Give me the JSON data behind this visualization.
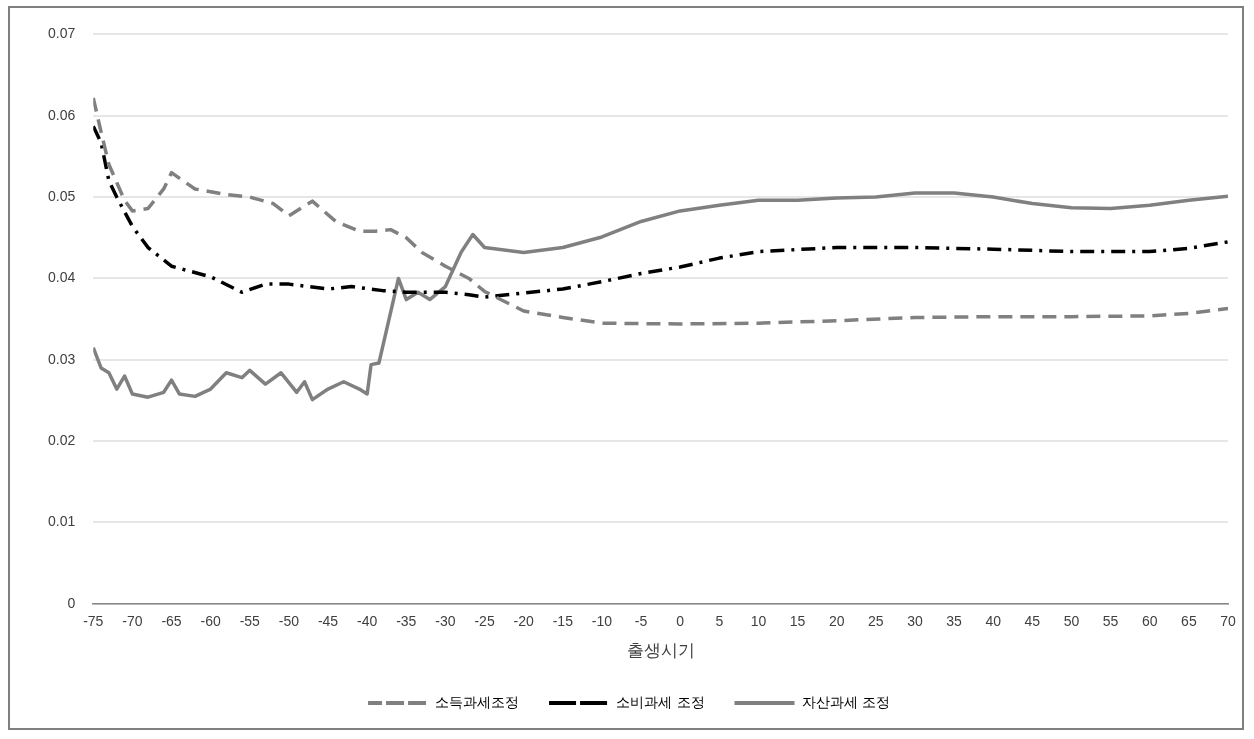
{
  "chart_data": {
    "type": "line",
    "xlabel": "출생시기",
    "xlim": [
      -75,
      70
    ],
    "xticks": [
      -75,
      -70,
      -65,
      -60,
      -55,
      -50,
      -45,
      -40,
      -35,
      -30,
      -25,
      -20,
      -15,
      -10,
      -5,
      0,
      5,
      10,
      15,
      20,
      25,
      30,
      35,
      40,
      45,
      50,
      55,
      60,
      65,
      70
    ],
    "ylim": [
      0,
      0.07
    ],
    "yticks": [
      0,
      0.01,
      0.02,
      0.03,
      0.04,
      0.05,
      0.06,
      0.07
    ],
    "grid": "y",
    "legend": "bottom",
    "marker": "none",
    "series": [
      {
        "name": "소득과세조정",
        "color": "#808080",
        "line_style": "dashed",
        "x": [
          -75,
          -74,
          -73,
          -71,
          -70,
          -68,
          -66,
          -65,
          -62,
          -58,
          -55,
          -52,
          -50,
          -47,
          -44,
          -41,
          -39,
          -37,
          -35,
          -33,
          -30,
          -27,
          -25,
          -20,
          -15,
          -10,
          0,
          10,
          20,
          30,
          40,
          50,
          60,
          65,
          70
        ],
        "values": [
          0.0622,
          0.058,
          0.054,
          0.0496,
          0.0483,
          0.0486,
          0.051,
          0.053,
          0.051,
          0.0503,
          0.05,
          0.0492,
          0.0477,
          0.0495,
          0.047,
          0.0458,
          0.0458,
          0.046,
          0.045,
          0.0432,
          0.0415,
          0.04,
          0.0384,
          0.036,
          0.0352,
          0.0345,
          0.0344,
          0.0345,
          0.0348,
          0.0352,
          0.0353,
          0.0353,
          0.0354,
          0.0357,
          0.0363
        ]
      },
      {
        "name": "소비과세 조정",
        "color": "#000000",
        "line_style": "dashdot",
        "x": [
          -75,
          -74,
          -73,
          -72,
          -70,
          -68,
          -65,
          -60,
          -56,
          -53,
          -50,
          -45,
          -42,
          -38,
          -35,
          -30,
          -27,
          -25,
          -20,
          -15,
          -10,
          -5,
          0,
          5,
          10,
          20,
          30,
          40,
          50,
          60,
          65,
          70
        ],
        "values": [
          0.0587,
          0.0567,
          0.052,
          0.05,
          0.0464,
          0.0438,
          0.0415,
          0.0402,
          0.0383,
          0.0393,
          0.0393,
          0.0387,
          0.039,
          0.0385,
          0.0383,
          0.0383,
          0.038,
          0.0377,
          0.0382,
          0.0387,
          0.0396,
          0.0406,
          0.0414,
          0.0425,
          0.0433,
          0.0438,
          0.0438,
          0.0436,
          0.0433,
          0.0433,
          0.0437,
          0.0445
        ]
      },
      {
        "name": "자산과세 조정",
        "color": "#808080",
        "line_style": "solid",
        "x": [
          -75,
          -74,
          -73,
          -72,
          -71,
          -70,
          -68,
          -66,
          -65,
          -64,
          -62,
          -60,
          -58,
          -56,
          -55,
          -53,
          -51,
          -49,
          -48,
          -47,
          -45,
          -43,
          -41,
          -40,
          -39.5,
          -38.5,
          -36,
          -35,
          -33.5,
          -32,
          -30,
          -28,
          -26.5,
          -25,
          -20,
          -15,
          -10,
          -5,
          0,
          5,
          10,
          15,
          20,
          25,
          30,
          35,
          40,
          45,
          50,
          55,
          60,
          65,
          70
        ],
        "values": [
          0.0315,
          0.029,
          0.0284,
          0.0264,
          0.028,
          0.0258,
          0.0254,
          0.026,
          0.0275,
          0.0258,
          0.0255,
          0.0264,
          0.0284,
          0.0278,
          0.0287,
          0.027,
          0.0284,
          0.026,
          0.0273,
          0.0251,
          0.0264,
          0.0273,
          0.0264,
          0.0258,
          0.0294,
          0.0296,
          0.04,
          0.0374,
          0.0383,
          0.0374,
          0.039,
          0.0432,
          0.0454,
          0.0438,
          0.0432,
          0.0438,
          0.0451,
          0.047,
          0.0483,
          0.049,
          0.0496,
          0.0496,
          0.0499,
          0.05,
          0.0505,
          0.0505,
          0.05,
          0.0492,
          0.0487,
          0.0486,
          0.049,
          0.0496,
          0.0501
        ]
      }
    ]
  }
}
